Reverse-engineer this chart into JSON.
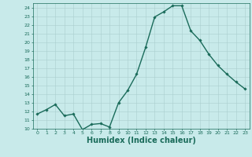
{
  "x": [
    0,
    1,
    2,
    3,
    4,
    5,
    6,
    7,
    8,
    9,
    10,
    11,
    12,
    13,
    14,
    15,
    16,
    17,
    18,
    19,
    20,
    21,
    22,
    23
  ],
  "y": [
    11.7,
    12.2,
    12.8,
    11.5,
    11.7,
    9.9,
    10.5,
    10.6,
    10.2,
    13.0,
    14.4,
    16.3,
    19.4,
    22.9,
    23.5,
    24.2,
    24.2,
    21.3,
    20.2,
    18.6,
    17.3,
    16.3,
    15.4,
    14.6
  ],
  "line_color": "#1a6b5a",
  "marker": "D",
  "marker_size": 1.8,
  "line_width": 1.0,
  "bg_color": "#c8eaea",
  "grid_color": "#aacece",
  "tick_color": "#1a6b5a",
  "xlabel": "Humidex (Indice chaleur)",
  "xlabel_fontsize": 7,
  "ylim": [
    10,
    24.5
  ],
  "xlim": [
    -0.5,
    23.5
  ],
  "yticks": [
    10,
    11,
    12,
    13,
    14,
    15,
    16,
    17,
    18,
    19,
    20,
    21,
    22,
    23,
    24
  ],
  "xticks": [
    0,
    1,
    2,
    3,
    4,
    5,
    6,
    7,
    8,
    9,
    10,
    11,
    12,
    13,
    14,
    15,
    16,
    17,
    18,
    19,
    20,
    21,
    22,
    23
  ]
}
